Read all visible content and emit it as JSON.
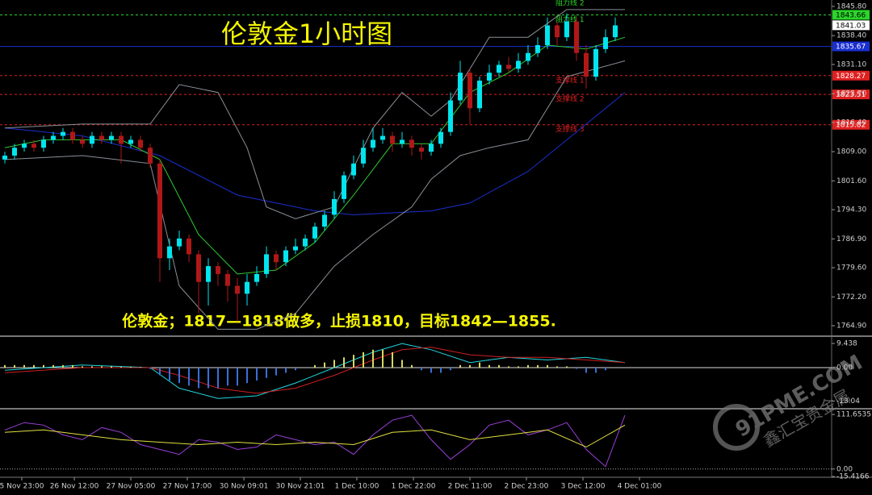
{
  "chart_data": [
    {
      "type": "candlestick",
      "title": "伦敦金1小时图",
      "annotation": "伦敦金；1817—1818做多，止损1810，目标1842—1855.",
      "top_label": "阻力线 2",
      "ylim": [
        1762.45,
        1847.43
      ],
      "yticks": [
        {
          "value": 1845.8,
          "label": "1845.80"
        },
        {
          "value": 1838.4,
          "label": "1838.40"
        },
        {
          "value": 1831.1,
          "label": "1831.10"
        },
        {
          "value": 1823.7,
          "label": "1823.70"
        },
        {
          "value": 1816.4,
          "label": "1816.40"
        },
        {
          "value": 1809,
          "label": "1809.00"
        },
        {
          "value": 1801.6,
          "label": "1801.60"
        },
        {
          "value": 1794.3,
          "label": "1794.30"
        },
        {
          "value": 1786.9,
          "label": "1786.90"
        },
        {
          "value": 1779.6,
          "label": "1779.60"
        },
        {
          "value": 1772.2,
          "label": "1772.20"
        },
        {
          "value": 1764.9,
          "label": "1764.90"
        }
      ],
      "xticks": [
        {
          "value": 1.75,
          "label": "5 Nov 23:00"
        },
        {
          "value": 7.17,
          "label": "26 Nov 12:00"
        },
        {
          "value": 13,
          "label": "27 Nov 05:00"
        },
        {
          "value": 18.83,
          "label": "27 Nov 17:00"
        },
        {
          "value": 24.67,
          "label": "30 Nov 09:01"
        },
        {
          "value": 30.5,
          "label": "30 Nov 21:01"
        },
        {
          "value": 36.33,
          "label": "1 Dec 10:00"
        },
        {
          "value": 42.17,
          "label": "1 Dec 22:00"
        },
        {
          "value": 48,
          "label": "2 Dec 11:00"
        },
        {
          "value": 53.83,
          "label": "2 Dec 23:00"
        },
        {
          "value": 59.67,
          "label": "3 Dec 12:00"
        },
        {
          "value": 65.5,
          "label": "4 Dec 01:00"
        }
      ],
      "up_color": "#00e5ee",
      "down_color": "#b01818",
      "open": [
        1807,
        1808,
        1810,
        1811,
        1810,
        1812,
        1813,
        1814,
        1812,
        1811,
        1813,
        1812,
        1813,
        1811,
        1812,
        1810,
        1806,
        1782,
        1785,
        1787,
        1783,
        1776,
        1780,
        1778,
        1775,
        1773,
        1776,
        1778,
        1783,
        1781,
        1784,
        1785,
        1787,
        1790,
        1793,
        1797,
        1803,
        1806,
        1810,
        1812,
        1813,
        1811,
        1812,
        1810,
        1809,
        1811,
        1814,
        1822,
        1829,
        1820,
        1827,
        1829,
        1831,
        1830,
        1832,
        1834,
        1836,
        1841,
        1838,
        1842,
        1834,
        1828,
        1835,
        1838
      ],
      "high": [
        1809,
        1811,
        1812,
        1812,
        1813,
        1814,
        1815,
        1815,
        1813,
        1814,
        1814,
        1814,
        1814,
        1813,
        1813,
        1811,
        1807,
        1787,
        1789,
        1788,
        1784,
        1782,
        1781,
        1779,
        1777,
        1778,
        1780,
        1785,
        1784,
        1785,
        1787,
        1788,
        1791,
        1794,
        1799,
        1804,
        1808,
        1812,
        1815,
        1815,
        1814,
        1814,
        1813,
        1811,
        1812,
        1815,
        1824,
        1832,
        1830,
        1828,
        1831,
        1832,
        1833,
        1834,
        1836,
        1838,
        1843,
        1842,
        1844,
        1843,
        1836,
        1836,
        1840,
        1843
      ],
      "low": [
        1806,
        1807,
        1809,
        1809,
        1809,
        1811,
        1812,
        1811,
        1810,
        1810,
        1811,
        1811,
        1806,
        1810,
        1809,
        1805,
        1776,
        1779,
        1784,
        1781,
        1768,
        1770,
        1775,
        1771,
        1766,
        1770,
        1775,
        1777,
        1779,
        1780,
        1783,
        1784,
        1786,
        1789,
        1792,
        1796,
        1802,
        1805,
        1809,
        1811,
        1809,
        1810,
        1808,
        1807,
        1808,
        1810,
        1813,
        1821,
        1816,
        1819,
        1826,
        1828,
        1829,
        1829,
        1831,
        1833,
        1835,
        1836,
        1837,
        1832,
        1825,
        1827,
        1834,
        1837
      ],
      "close": [
        1808,
        1810,
        1811,
        1810,
        1812,
        1813,
        1814,
        1812,
        1811,
        1813,
        1812,
        1813,
        1811,
        1812,
        1810,
        1806,
        1782,
        1785,
        1787,
        1783,
        1776,
        1780,
        1778,
        1775,
        1773,
        1776,
        1778,
        1783,
        1781,
        1784,
        1785,
        1787,
        1790,
        1793,
        1797,
        1803,
        1806,
        1810,
        1812,
        1813,
        1811,
        1812,
        1810,
        1809,
        1811,
        1814,
        1822,
        1829,
        1820,
        1827,
        1829,
        1831,
        1830,
        1832,
        1834,
        1836,
        1841,
        1838,
        1842,
        1834,
        1828,
        1835,
        1838,
        1841
      ],
      "lines": [
        {
          "color": "#1a2fd0",
          "x": [
            0,
            8,
            16,
            24,
            32,
            36,
            44,
            48,
            54,
            60,
            64
          ],
          "values": [
            1815,
            1813,
            1808,
            1798,
            1794,
            1793,
            1794,
            1796,
            1804,
            1816,
            1824
          ]
        },
        {
          "color": "#8a9098",
          "x": [
            0,
            8,
            15,
            18,
            22,
            25,
            27,
            30,
            34,
            38,
            41,
            44,
            46,
            50,
            54,
            58,
            64
          ],
          "values": [
            1815,
            1816,
            1816,
            1826,
            1824,
            1810,
            1795,
            1792,
            1795,
            1815,
            1824,
            1818,
            1822,
            1838,
            1838,
            1845,
            1845
          ]
        },
        {
          "color": "#8a9098",
          "x": [
            0,
            8,
            15,
            18,
            22,
            26,
            30,
            34,
            38,
            42,
            44,
            47,
            50,
            54,
            58,
            64
          ],
          "values": [
            1807,
            1808,
            1806,
            1775,
            1764,
            1764,
            1768,
            1780,
            1788,
            1795,
            1802,
            1808,
            1810,
            1812,
            1828,
            1832
          ]
        },
        {
          "color": "#2ecc2e",
          "x": [
            0,
            4,
            8,
            12,
            16,
            20,
            24,
            28,
            32,
            36,
            40,
            44,
            48,
            52,
            56,
            60,
            64
          ],
          "values": [
            1810,
            1812,
            1812,
            1812,
            1807,
            1788,
            1778,
            1779,
            1786,
            1798,
            1811,
            1811,
            1824,
            1829,
            1836,
            1835,
            1838
          ]
        }
      ],
      "levels": [
        {
          "label": "阻力线 1",
          "value": 1843.66,
          "color": "#2ad52a",
          "text_color": "#000000",
          "dashed": true
        },
        {
          "value": 1835.67,
          "color": "#1a2fd0",
          "text_color": "#ffffff",
          "dashed": false
        },
        {
          "label": "支撑线 1",
          "value": 1828.27,
          "color": "#e02020",
          "text_color": "#ffffff",
          "dashed": true
        },
        {
          "label": "支撑线 2",
          "value": 1823.51,
          "color": "#e02020",
          "text_color": "#ffffff",
          "dashed": true
        },
        {
          "label": "支撑线 3",
          "value": 1815.82,
          "color": "#e02020",
          "text_color": "#ffffff",
          "dashed": true
        }
      ],
      "current_price": 1841.03
    },
    {
      "type": "bar",
      "ylim": [
        -15.7,
        11.95
      ],
      "yticks": [
        9.438,
        {
          "value": 0,
          "label": "0.00"
        },
        -13.04
      ],
      "up_color": "#d8d860",
      "down_color": "#3a6fd8",
      "values": [
        1,
        1,
        1,
        1,
        1,
        1,
        1,
        1,
        0.5,
        0.5,
        0.5,
        0.5,
        0.3,
        0.3,
        0.2,
        -0.5,
        -3,
        -5,
        -6,
        -7,
        -8,
        -8,
        -8,
        -7,
        -7,
        -6,
        -5,
        -4,
        -3,
        -2,
        -1,
        0,
        1,
        2,
        3,
        4,
        5,
        6,
        7,
        7,
        6,
        3,
        1,
        -1,
        -2,
        -2,
        -1,
        1,
        1,
        2,
        1,
        1,
        0.5,
        0.5,
        1,
        1,
        1,
        0.5,
        0.5,
        -0.5,
        -2,
        -2,
        -1,
        0
      ],
      "lines": [
        {
          "color": "#20d8e0",
          "x": [
            0,
            8,
            15,
            18,
            22,
            26,
            30,
            34,
            38,
            41,
            44,
            48,
            52,
            56,
            60,
            64
          ],
          "values": [
            -1,
            1,
            0,
            -8,
            -12,
            -11,
            -6,
            0,
            6,
            9.4,
            7,
            2,
            4,
            3,
            4,
            2
          ]
        },
        {
          "color": "#d02020",
          "x": [
            0,
            8,
            15,
            18,
            22,
            26,
            30,
            34,
            38,
            41,
            44,
            48,
            52,
            56,
            60,
            64
          ],
          "values": [
            -2,
            0,
            0,
            -3,
            -8,
            -10,
            -8,
            -3,
            3,
            7,
            8,
            5,
            4,
            4,
            3,
            2
          ]
        }
      ]
    },
    {
      "type": "line",
      "ylim": [
        -16.9,
        121.8
      ],
      "yticks": [
        111.6535,
        {
          "value": 0,
          "label": "0.00"
        },
        -15.4166
      ],
      "lines": [
        {
          "color": "#9a40d8",
          "x": [
            0,
            2,
            4,
            6,
            8,
            10,
            12,
            14,
            16,
            18,
            20,
            22,
            24,
            26,
            28,
            30,
            32,
            34,
            36,
            38,
            40,
            42,
            44,
            46,
            48,
            50,
            52,
            54,
            56,
            58,
            60,
            62,
            64
          ],
          "values": [
            80,
            95,
            90,
            70,
            60,
            85,
            75,
            50,
            40,
            30,
            60,
            55,
            40,
            45,
            70,
            60,
            50,
            55,
            30,
            70,
            100,
            110,
            60,
            20,
            50,
            90,
            100,
            70,
            80,
            95,
            40,
            5,
            110
          ]
        },
        {
          "color": "#e0e040",
          "x": [
            0,
            4,
            8,
            12,
            16,
            20,
            24,
            28,
            32,
            36,
            40,
            44,
            48,
            52,
            56,
            60,
            64
          ],
          "values": [
            75,
            80,
            70,
            60,
            55,
            50,
            55,
            50,
            55,
            50,
            75,
            80,
            60,
            70,
            80,
            45,
            90
          ]
        }
      ]
    }
  ],
  "watermark": {
    "site": "91PME.COM",
    "name": "鑫汇宝贵金属"
  }
}
